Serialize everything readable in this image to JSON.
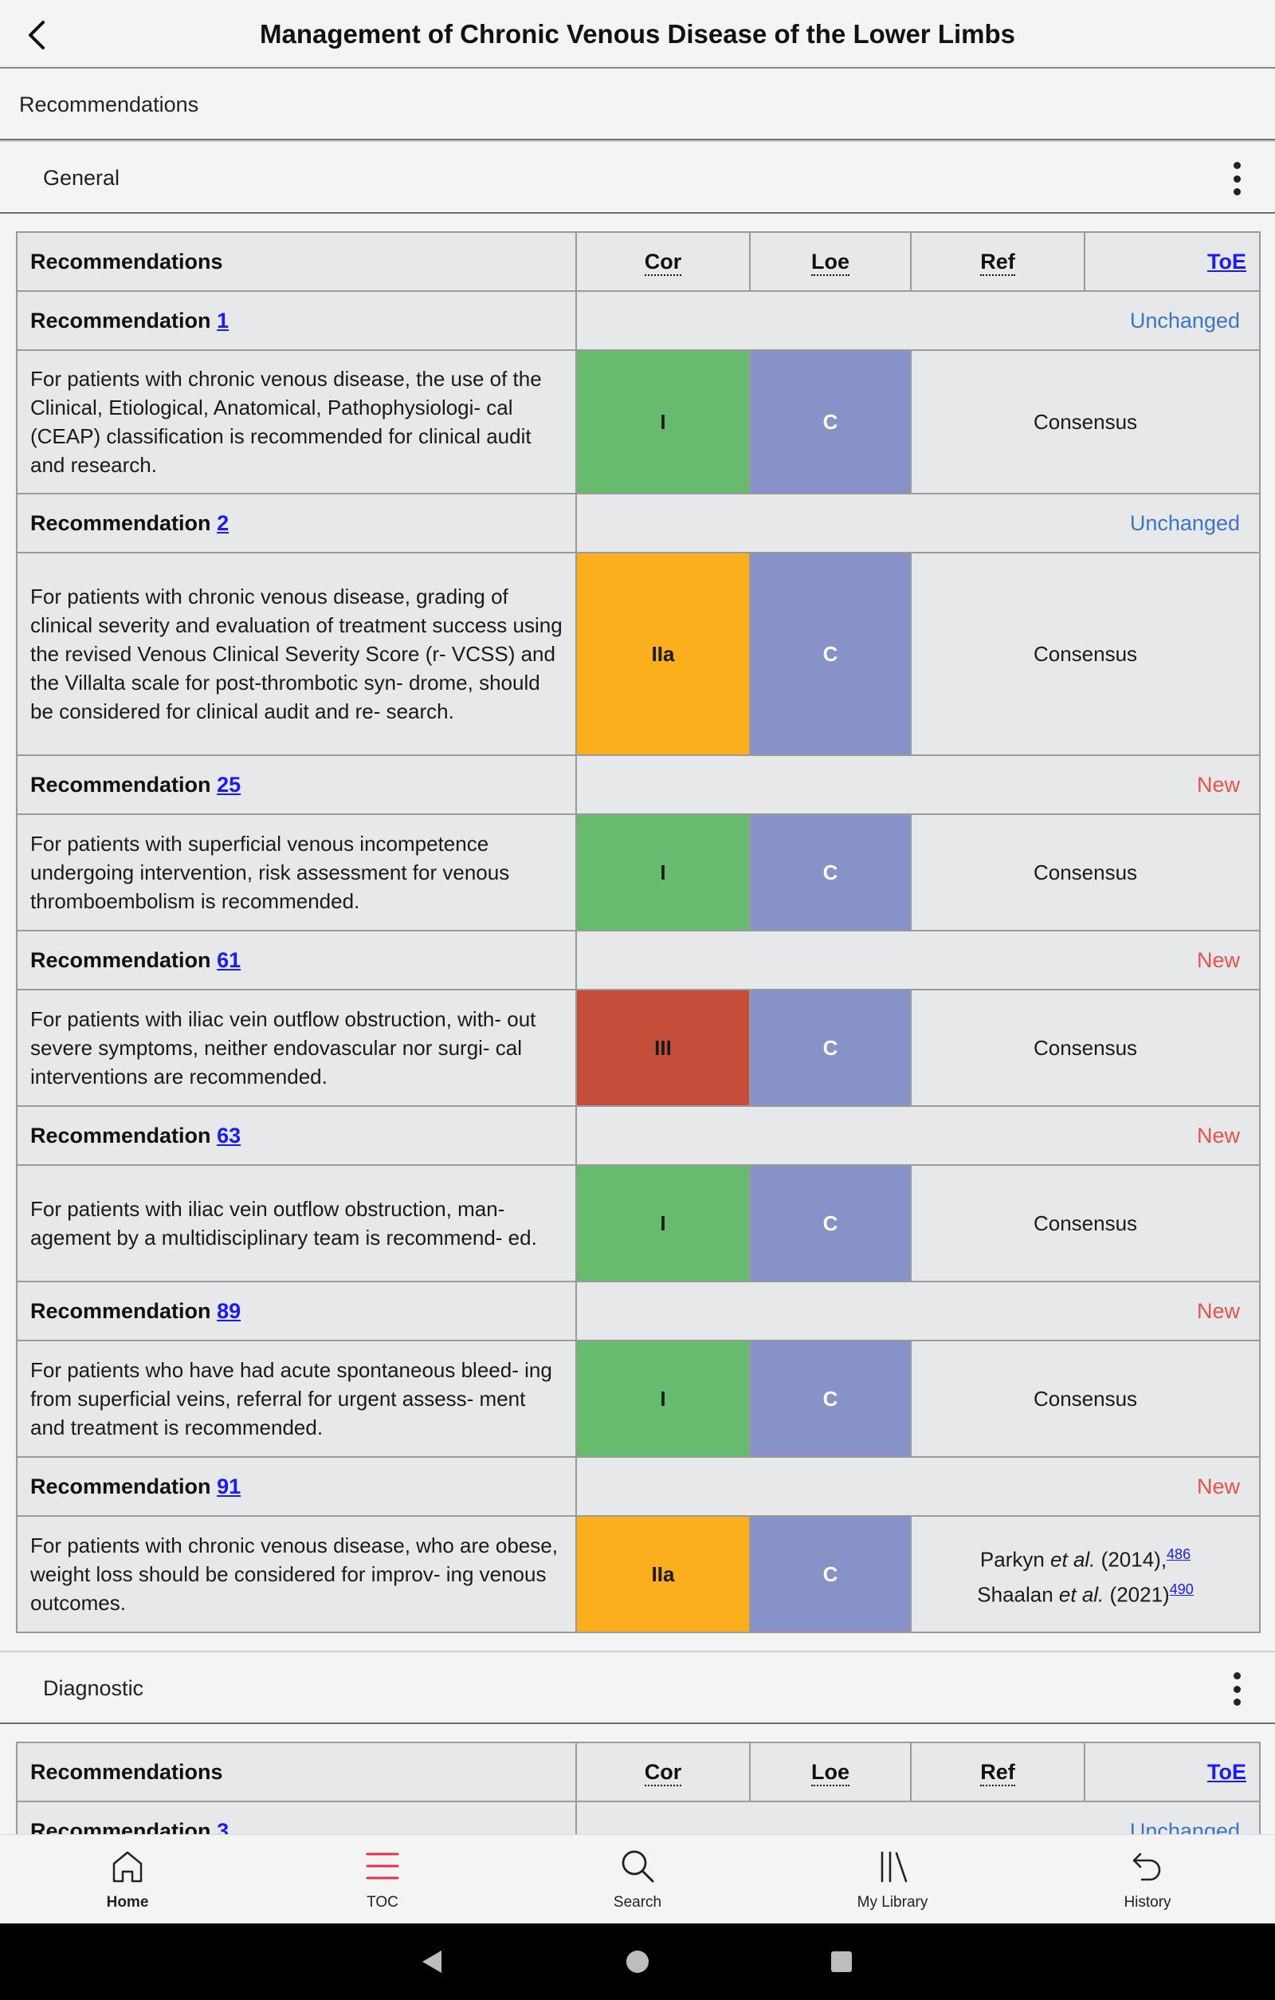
{
  "header": {
    "title": "Management of Chronic Venous Disease of the Lower Limbs"
  },
  "breadcrumb": {
    "label": "Recommendations"
  },
  "table_headers": {
    "recommendations": "Recommendations",
    "cor": "Cor",
    "loe": "Loe",
    "ref": "Ref",
    "toe": "ToE"
  },
  "sections": [
    {
      "title": "General",
      "rows": [
        {
          "label": "Recommendation",
          "number": "1",
          "status": "Unchanged",
          "text": "For patients with chronic venous disease, the use of the Clinical, Etiological, Anatomical, Pathophysiologi- cal (CEAP) classification is recommended for clinical audit and research.",
          "cor": "I",
          "loe": "C",
          "ref": "Consensus"
        },
        {
          "label": "Recommendation",
          "number": "2",
          "status": "Unchanged",
          "text": "For patients with chronic venous disease, grading of clinical severity and evaluation of treatment success using the revised Venous Clinical Severity Score (r- VCSS) and the Villalta scale for post-thrombotic syn- drome, should be considered for clinical audit and re- search.",
          "cor": "IIa",
          "loe": "C",
          "ref": "Consensus"
        },
        {
          "label": "Recommendation",
          "number": "25",
          "status": "New",
          "text": "For patients with superficial venous incompetence undergoing intervention, risk assessment for venous thromboembolism is recommended.",
          "cor": "I",
          "loe": "C",
          "ref": "Consensus"
        },
        {
          "label": "Recommendation",
          "number": "61",
          "status": "New",
          "text": "For patients with iliac vein outflow obstruction, with- out severe symptoms, neither endovascular nor surgi- cal interventions are recommended.",
          "cor": "III",
          "loe": "C",
          "ref": "Consensus"
        },
        {
          "label": "Recommendation",
          "number": "63",
          "status": "New",
          "text": "For patients with iliac vein outflow obstruction, man- agement by a multidisciplinary team is recommend- ed.",
          "cor": "I",
          "loe": "C",
          "ref": "Consensus"
        },
        {
          "label": "Recommendation",
          "number": "89",
          "status": "New",
          "text": "For patients who have had acute spontaneous bleed- ing from superficial veins, referral for urgent assess- ment and treatment is recommended.",
          "cor": "I",
          "loe": "C",
          "ref": "Consensus"
        },
        {
          "label": "Recommendation",
          "number": "91",
          "status": "New",
          "text": "For patients with chronic venous disease, who are obese, weight loss should be considered for improv- ing venous outcomes.",
          "cor": "IIa",
          "loe": "C",
          "refs": [
            {
              "author": "Parkyn",
              "etal": "et al.",
              "year": "(2014),",
              "cite": "486"
            },
            {
              "author": "Shaalan",
              "etal": "et al.",
              "year": "(2021)",
              "cite": "490"
            }
          ]
        }
      ]
    },
    {
      "title": "Diagnostic",
      "rows": [
        {
          "label": "Recommendation",
          "number": "3",
          "status": "Unchanged"
        }
      ]
    }
  ],
  "bottom_nav": [
    {
      "label": "Home",
      "icon": "home-icon"
    },
    {
      "label": "TOC",
      "icon": "toc-icon"
    },
    {
      "label": "Search",
      "icon": "search-icon"
    },
    {
      "label": "My Library",
      "icon": "library-icon"
    },
    {
      "label": "History",
      "icon": "history-icon"
    }
  ],
  "colors": {
    "cor_I": "#66bb6e",
    "cor_IIa": "#fbaf1c",
    "cor_III": "#c44e39",
    "loe": "#8793c8",
    "status_unchanged": "#3a76c4",
    "status_new": "#e8524a",
    "toc_accent": "#e8304a"
  }
}
